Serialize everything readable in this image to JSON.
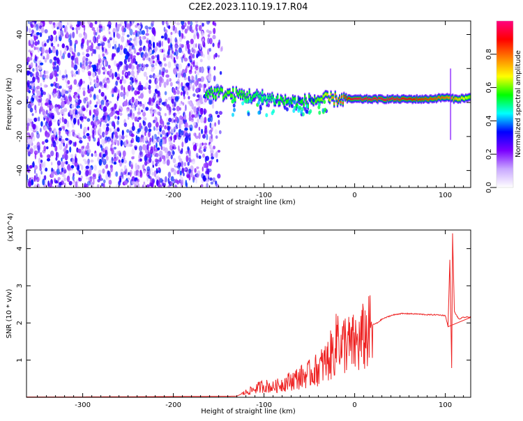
{
  "title": "C2E2.2023.110.19.17.R04",
  "chart_data": [
    {
      "type": "heatmap",
      "xlabel": "Height of straight line (km)",
      "ylabel": "Frequency (Hz)",
      "xlim": [
        -362,
        128
      ],
      "ylim": [
        -50,
        48
      ],
      "x_ticks": [
        "-300",
        "-200",
        "-100",
        "0",
        "100"
      ],
      "x_tick_values": [
        -300,
        -200,
        -100,
        0,
        100
      ],
      "y_ticks": [
        "-40",
        "-20",
        "0",
        "20",
        "40"
      ],
      "y_tick_values": [
        -40,
        -20,
        0,
        20,
        40
      ],
      "colorbar": {
        "label": "Normalized spectral amplitude",
        "range": [
          0,
          1
        ],
        "ticks": [
          "0.0",
          "0.2",
          "0.4",
          "0.6",
          "0.8"
        ],
        "tick_values": [
          0.0,
          0.2,
          0.4,
          0.6,
          0.8
        ],
        "colors": [
          "#ffffff",
          "#c9a8ff",
          "#7a00ff",
          "#0000ff",
          "#00ffff",
          "#00ff00",
          "#ffff00",
          "#ff8000",
          "#ff0000",
          "#ff0080"
        ]
      },
      "noise_region_x": [
        -362,
        -145
      ],
      "ridge": [
        {
          "x": -165,
          "y": 6,
          "amp": 0.55
        },
        {
          "x": -140,
          "y": 5,
          "amp": 0.6
        },
        {
          "x": -120,
          "y": 4,
          "amp": 0.55
        },
        {
          "x": -100,
          "y": 3,
          "amp": 0.5
        },
        {
          "x": -80,
          "y": 1,
          "amp": 0.55
        },
        {
          "x": -60,
          "y": 0,
          "amp": 0.55
        },
        {
          "x": -40,
          "y": 2,
          "amp": 0.6
        },
        {
          "x": -20,
          "y": 2,
          "amp": 0.8
        },
        {
          "x": 0,
          "y": 2,
          "amp": 0.95
        },
        {
          "x": 40,
          "y": 2,
          "amp": 0.95
        },
        {
          "x": 80,
          "y": 2,
          "amp": 0.85
        },
        {
          "x": 100,
          "y": 3,
          "amp": 0.8
        },
        {
          "x": 110,
          "y": 2,
          "amp": 0.75
        },
        {
          "x": 128,
          "y": 3,
          "amp": 0.6
        }
      ]
    },
    {
      "type": "line",
      "xlabel": "Height of straight line (km)",
      "ylabel": "SNR (10 * v/v)",
      "y_multiplier": "(x10^4)",
      "xlim": [
        -362,
        128
      ],
      "ylim": [
        0,
        4.5
      ],
      "x_ticks": [
        "-300",
        "-200",
        "-100",
        "0",
        "100"
      ],
      "x_tick_values": [
        -300,
        -200,
        -100,
        0,
        100
      ],
      "y_ticks": [
        "1",
        "2",
        "3",
        "4"
      ],
      "y_tick_values": [
        1,
        2,
        3,
        4
      ],
      "series": [
        {
          "color": "#ee2222",
          "x": [
            -362,
            -300,
            -200,
            -130,
            -120,
            -110,
            -100,
            -90,
            -80,
            -70,
            -60,
            -50,
            -40,
            -30,
            -25,
            -20,
            -18,
            -15,
            -10,
            -5,
            0,
            5,
            10,
            15,
            20,
            25,
            30,
            40,
            50,
            60,
            70,
            80,
            90,
            100,
            103,
            105,
            107,
            108,
            110,
            115,
            120,
            128
          ],
          "y": [
            0.01,
            0.01,
            0.02,
            0.03,
            0.15,
            0.25,
            0.35,
            0.3,
            0.4,
            0.5,
            0.6,
            0.7,
            0.85,
            1.1,
            1.3,
            1.6,
            2.2,
            1.4,
            1.7,
            1.5,
            1.6,
            1.6,
            1.8,
            1.9,
            1.95,
            2.0,
            2.1,
            2.2,
            2.25,
            2.25,
            2.24,
            2.22,
            2.22,
            2.2,
            1.9,
            3.7,
            0.8,
            4.4,
            2.3,
            2.1,
            2.15,
            2.16
          ]
        }
      ]
    }
  ]
}
